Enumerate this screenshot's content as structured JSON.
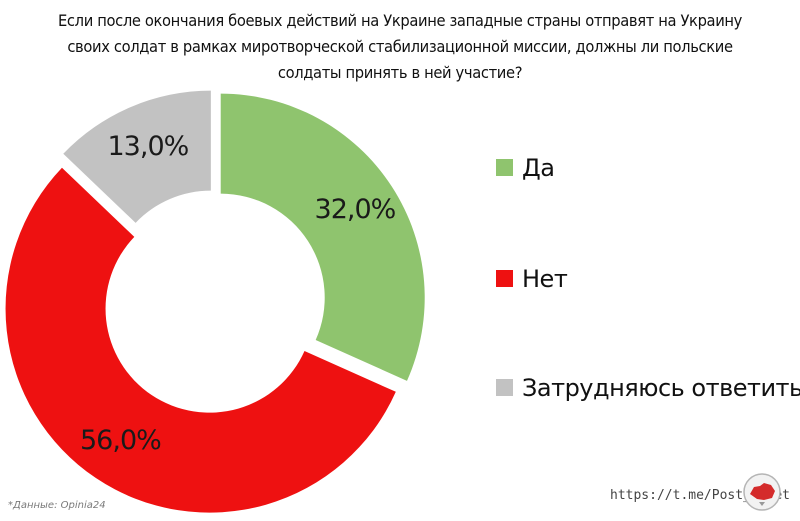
{
  "chart_data": {
    "type": "pie",
    "title": "Если после окончания боевых действий на Украине западные страны отправят на Украину своих солдат в рамках миротворческой стабилизационной миссии, должны ли польские солдаты принять в ней участие?",
    "series": [
      {
        "name": "Да",
        "value": 32.0,
        "label": "32,0%",
        "color": "#8fc46e"
      },
      {
        "name": "Нет",
        "value": 56.0,
        "label": "56,0%",
        "color": "#ee1111"
      },
      {
        "name": "Затрудняюсь ответить",
        "value": 13.0,
        "label": "13,0%",
        "color": "#c2c2c2"
      }
    ],
    "donut": true,
    "exploded": true,
    "legend_position": "right"
  },
  "source": "*Данные: Opinia24",
  "link": "https://t.me/Post_Sovet",
  "logo_icon": "post-sovet-logo-icon"
}
